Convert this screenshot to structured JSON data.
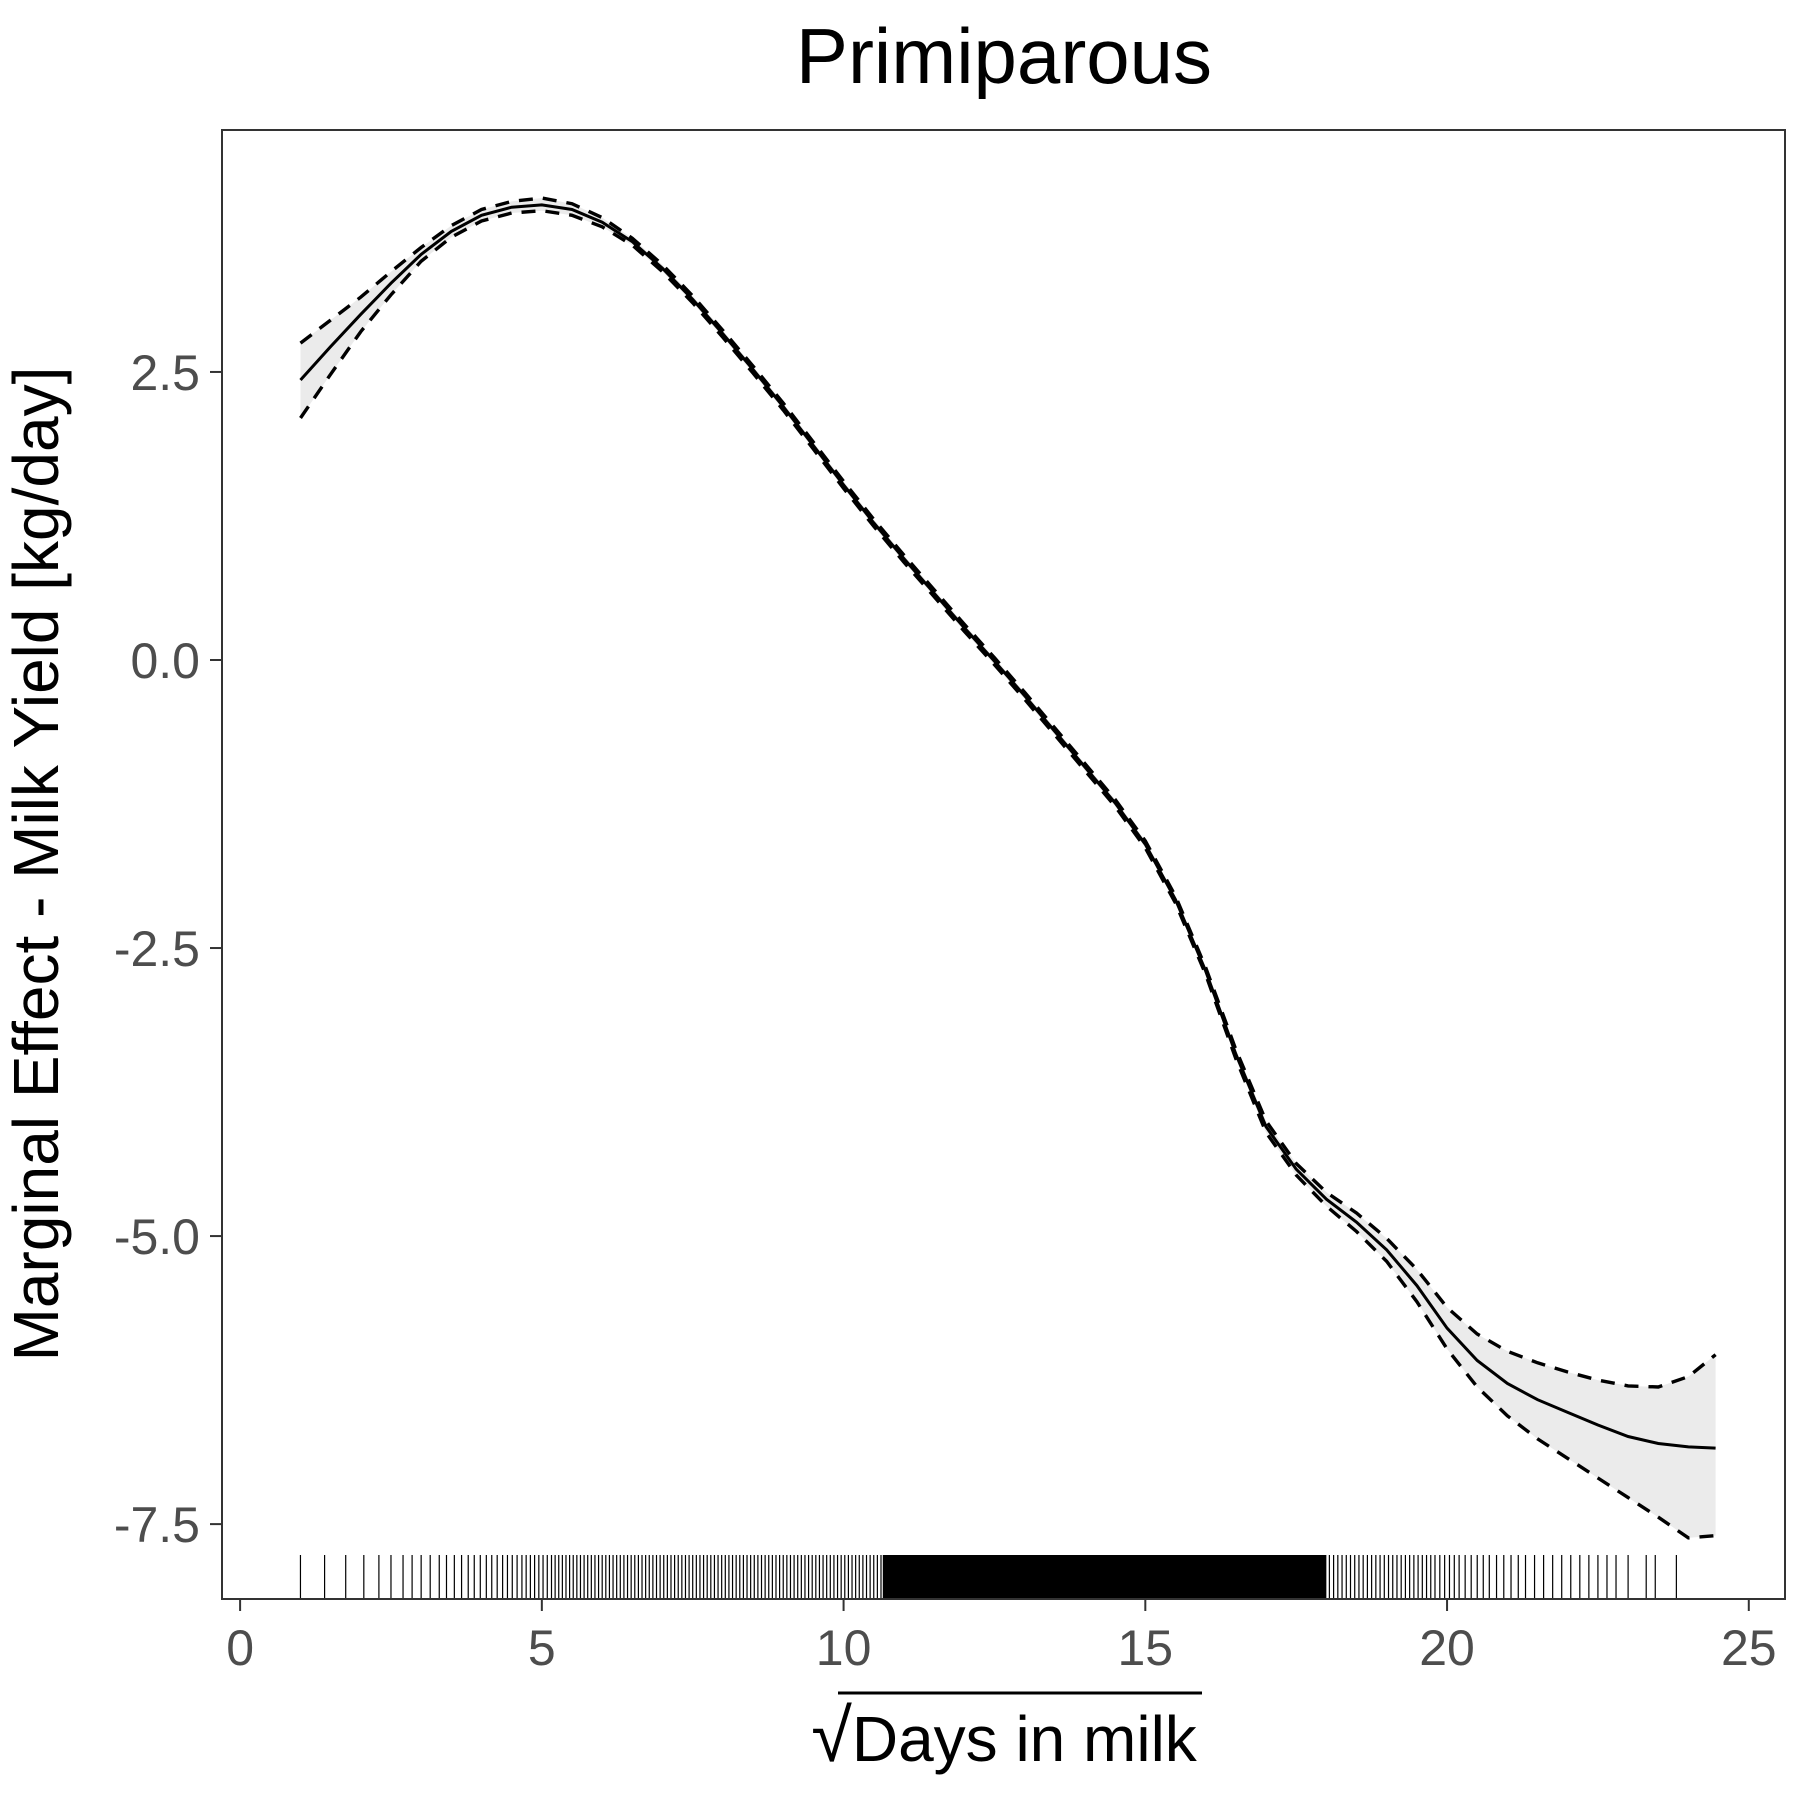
{
  "chart_data": {
    "type": "line",
    "title": "Primiparous",
    "xlabel": "Days in milk",
    "xlabel_prefix": "√",
    "ylabel": "Marginal Effect - Milk Yield [kg/day]",
    "xlim": [
      -0.3,
      25.6
    ],
    "ylim": [
      -8.15,
      4.6
    ],
    "x_ticks": [
      0,
      5,
      10,
      15,
      20,
      25
    ],
    "x_tick_labels": [
      "0",
      "5",
      "10",
      "15",
      "20",
      "25"
    ],
    "y_ticks": [
      2.5,
      0.0,
      -2.5,
      -5.0,
      -7.5
    ],
    "y_tick_labels": [
      "2.5",
      "0.0",
      "-2.5",
      "-5.0",
      "-7.5"
    ],
    "grid": false,
    "legend": "none",
    "colors": {
      "line": "#000000",
      "band": "#ebebeb",
      "tick_text": "#4d4d4d",
      "panel_border": "#333333"
    },
    "x": [
      1.0,
      1.5,
      2.0,
      2.5,
      3.0,
      3.5,
      4.0,
      4.5,
      5.0,
      5.5,
      6.0,
      6.5,
      7.0,
      7.5,
      8.0,
      8.5,
      9.0,
      9.5,
      10.0,
      10.5,
      11.0,
      11.5,
      12.0,
      12.5,
      13.0,
      13.5,
      14.0,
      14.5,
      15.0,
      15.5,
      16.0,
      16.5,
      17.0,
      17.5,
      18.0,
      18.5,
      19.0,
      19.5,
      20.0,
      20.5,
      21.0,
      21.5,
      22.0,
      22.5,
      23.0,
      23.5,
      24.0,
      24.45
    ],
    "series": [
      {
        "role": "estimate",
        "style": "solid",
        "values": [
          2.43,
          2.72,
          3.0,
          3.27,
          3.52,
          3.72,
          3.86,
          3.93,
          3.95,
          3.91,
          3.8,
          3.63,
          3.4,
          3.13,
          2.83,
          2.52,
          2.2,
          1.86,
          1.52,
          1.19,
          0.88,
          0.58,
          0.28,
          -0.01,
          -0.31,
          -0.62,
          -0.93,
          -1.24,
          -1.6,
          -2.08,
          -2.7,
          -3.42,
          -4.05,
          -4.42,
          -4.68,
          -4.88,
          -5.12,
          -5.43,
          -5.8,
          -6.08,
          -6.28,
          -6.42,
          -6.53,
          -6.64,
          -6.74,
          -6.8,
          -6.83,
          -6.84
        ]
      },
      {
        "role": "upper",
        "style": "dashed",
        "values": [
          2.75,
          2.95,
          3.15,
          3.37,
          3.58,
          3.77,
          3.91,
          3.98,
          4.01,
          3.96,
          3.84,
          3.66,
          3.43,
          3.16,
          2.86,
          2.55,
          2.23,
          1.89,
          1.55,
          1.22,
          0.91,
          0.61,
          0.31,
          0.02,
          -0.28,
          -0.59,
          -0.9,
          -1.21,
          -1.57,
          -2.05,
          -2.67,
          -3.38,
          -4.0,
          -4.37,
          -4.62,
          -4.8,
          -5.02,
          -5.29,
          -5.62,
          -5.85,
          -6.0,
          -6.1,
          -6.18,
          -6.25,
          -6.3,
          -6.31,
          -6.22,
          -6.03
        ]
      },
      {
        "role": "lower",
        "style": "dashed",
        "values": [
          2.1,
          2.48,
          2.85,
          3.17,
          3.46,
          3.67,
          3.81,
          3.88,
          3.9,
          3.86,
          3.76,
          3.6,
          3.37,
          3.1,
          2.8,
          2.49,
          2.17,
          1.83,
          1.49,
          1.16,
          0.85,
          0.55,
          0.25,
          -0.04,
          -0.34,
          -0.65,
          -0.96,
          -1.27,
          -1.63,
          -2.11,
          -2.73,
          -3.46,
          -4.1,
          -4.47,
          -4.74,
          -4.96,
          -5.22,
          -5.57,
          -5.98,
          -6.31,
          -6.56,
          -6.76,
          -6.93,
          -7.1,
          -7.27,
          -7.44,
          -7.62,
          -7.6
        ]
      }
    ],
    "rug": [
      1.0,
      1.4,
      1.75,
      2.05,
      2.3,
      2.5,
      2.7,
      2.85,
      3.0,
      3.15,
      3.3,
      3.42,
      3.55,
      3.67,
      3.78,
      3.88,
      3.98,
      4.08,
      4.17,
      4.26,
      4.35,
      4.43,
      4.51,
      4.59,
      4.67,
      4.74,
      4.81,
      4.88,
      4.95,
      5.02,
      5.09,
      5.16,
      5.22,
      5.28,
      5.34,
      5.4,
      5.46,
      5.52,
      5.58,
      5.64,
      5.7,
      5.76,
      5.82,
      5.88,
      5.94,
      6.0,
      6.06,
      6.12,
      6.18,
      6.24,
      6.3,
      6.36,
      6.42,
      6.48,
      6.54,
      6.6,
      6.66,
      6.72,
      6.78,
      6.84,
      6.9,
      6.96,
      7.02,
      7.08,
      7.14,
      7.2,
      7.26,
      7.32,
      7.38,
      7.44,
      7.5,
      7.56,
      7.62,
      7.68,
      7.74,
      7.8,
      7.86,
      7.92,
      7.98,
      8.04,
      8.1,
      8.16,
      8.22,
      8.28,
      8.34,
      8.4,
      8.46,
      8.52,
      8.58,
      8.64,
      8.7,
      8.76,
      8.82,
      8.88,
      8.94,
      9.0,
      9.06,
      9.12,
      9.18,
      9.24,
      9.3,
      9.36,
      9.42,
      9.48,
      9.54,
      9.6,
      9.66,
      9.72,
      9.78,
      9.84,
      9.9,
      9.96,
      10.02,
      10.08,
      10.14,
      10.2,
      10.26,
      10.32,
      10.38,
      10.44,
      10.5,
      10.56,
      10.62,
      18.05,
      18.12,
      18.19,
      18.26,
      18.33,
      18.4,
      18.47,
      18.54,
      18.61,
      18.68,
      18.75,
      18.82,
      18.89,
      18.96,
      19.03,
      19.1,
      19.17,
      19.24,
      19.31,
      19.38,
      19.45,
      19.52,
      19.59,
      19.66,
      19.73,
      19.8,
      19.88,
      19.96,
      20.04,
      20.12,
      20.2,
      20.3,
      20.4,
      20.5,
      20.6,
      20.7,
      20.82,
      20.94,
      21.06,
      21.18,
      21.3,
      21.45,
      21.6,
      21.75,
      21.9,
      22.05,
      22.2,
      22.35,
      22.5,
      22.65,
      22.8,
      23.0,
      23.3,
      23.45,
      23.8
    ],
    "rug_dense_range": [
      10.65,
      18.0
    ]
  }
}
